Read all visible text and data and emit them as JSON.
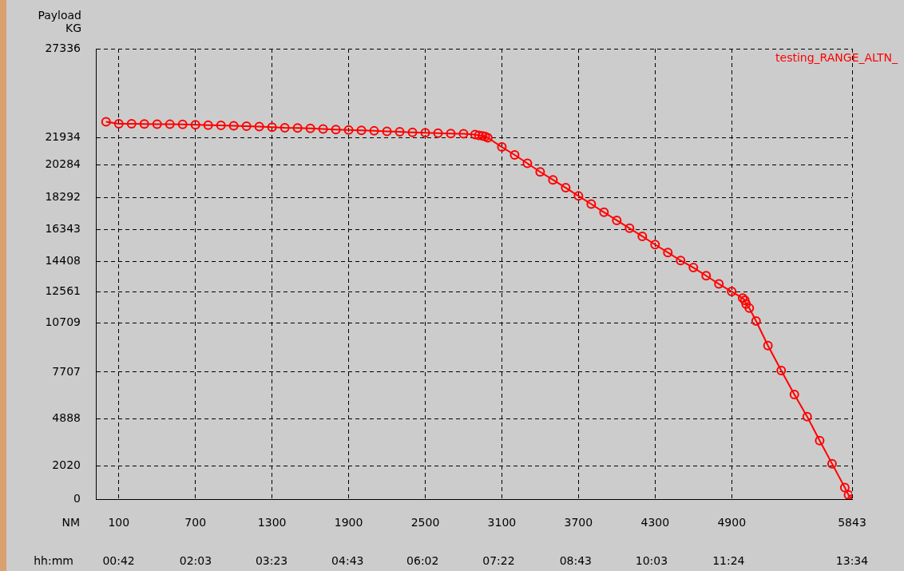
{
  "chart_data": {
    "type": "line",
    "ylabel": "Payload\nKG",
    "xlabel": "NM",
    "x2label": "hh:mm",
    "xlim": [
      -80,
      5843
    ],
    "xticks": [
      100,
      700,
      1300,
      1900,
      2500,
      3100,
      3700,
      4300,
      4900,
      5843
    ],
    "x2lim": [
      0.3,
      13.5667
    ],
    "x2ticks": [
      {
        "value": 0.7,
        "label": "00:42"
      },
      {
        "value": 2.05,
        "label": "02:03"
      },
      {
        "value": 3.3833,
        "label": "03:23"
      },
      {
        "value": 4.7167,
        "label": "04:43"
      },
      {
        "value": 6.0333,
        "label": "06:02"
      },
      {
        "value": 7.3667,
        "label": "07:22"
      },
      {
        "value": 8.7167,
        "label": "08:43"
      },
      {
        "value": 10.05,
        "label": "10:03"
      },
      {
        "value": 11.4,
        "label": "11:24"
      },
      {
        "value": 13.5667,
        "label": "13:34"
      }
    ],
    "ylim": [
      0,
      27336
    ],
    "yticks": [
      0,
      2020,
      4888,
      7707,
      10709,
      12561,
      14408,
      16343,
      18292,
      20284,
      21934,
      27336
    ],
    "grid": true,
    "legend": "top right",
    "marker": "circle",
    "line_style": "solid",
    "series": [
      {
        "name": "testing_RANGE_ALTN_",
        "color": "#ff0000",
        "x": [
          0,
          100,
          200,
          300,
          400,
          500,
          600,
          700,
          800,
          900,
          1000,
          1100,
          1200,
          1300,
          1400,
          1500,
          1600,
          1700,
          1800,
          1900,
          2000,
          2100,
          2200,
          2300,
          2400,
          2500,
          2600,
          2700,
          2800,
          2890,
          2920,
          2950,
          2970,
          2990,
          3100,
          3200,
          3300,
          3400,
          3500,
          3600,
          3700,
          3800,
          3900,
          4000,
          4100,
          4200,
          4300,
          4400,
          4500,
          4600,
          4700,
          4800,
          4900,
          4986,
          5003,
          5013,
          5038,
          5091,
          5184,
          5288,
          5391,
          5491,
          5589,
          5686,
          5786,
          5815,
          5843
        ],
        "values": [
          22900,
          22780,
          22780,
          22770,
          22760,
          22750,
          22740,
          22720,
          22700,
          22680,
          22660,
          22640,
          22610,
          22570,
          22540,
          22530,
          22500,
          22470,
          22430,
          22400,
          22380,
          22350,
          22320,
          22290,
          22260,
          22240,
          22210,
          22190,
          22170,
          22120,
          22080,
          22040,
          22000,
          21930,
          21370,
          20890,
          20380,
          19860,
          19380,
          18900,
          18400,
          17910,
          17410,
          16920,
          16440,
          15950,
          15450,
          14970,
          14480,
          14050,
          13560,
          13060,
          12600,
          12200,
          12070,
          11840,
          11590,
          10810,
          9320,
          7800,
          6350,
          5010,
          3550,
          2150,
          700,
          250,
          0
        ]
      }
    ]
  }
}
